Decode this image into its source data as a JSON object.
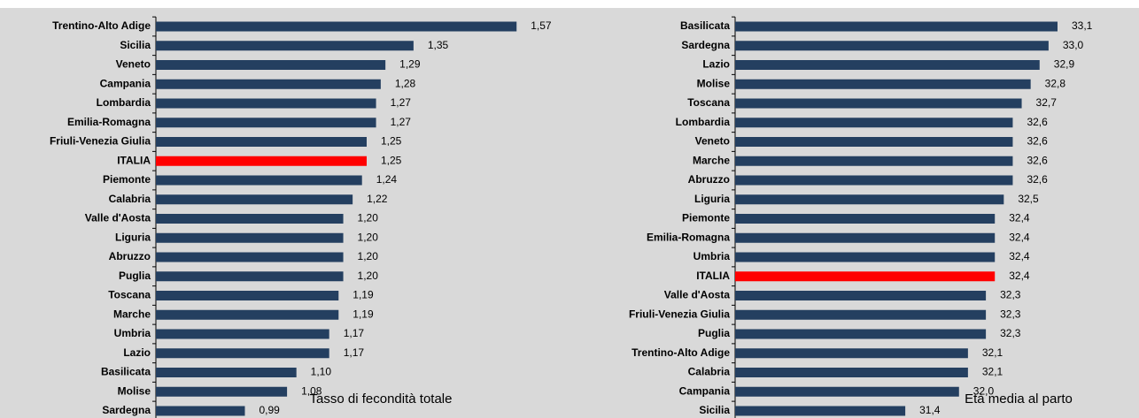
{
  "chart_data": [
    {
      "type": "barh",
      "title": "Tasso di fecondità totale",
      "categories": [
        "Trentino-Alto Adige",
        "Sicilia",
        "Veneto",
        "Campania",
        "Lombardia",
        "Emilia-Romagna",
        "Friuli-Venezia Giulia",
        "ITALIA",
        "Piemonte",
        "Calabria",
        "Valle d'Aosta",
        "Liguria",
        "Abruzzo",
        "Puglia",
        "Toscana",
        "Marche",
        "Umbria",
        "Lazio",
        "Basilicata",
        "Molise",
        "Sardegna"
      ],
      "values": [
        1.57,
        1.35,
        1.29,
        1.28,
        1.27,
        1.27,
        1.25,
        1.25,
        1.24,
        1.22,
        1.2,
        1.2,
        1.2,
        1.2,
        1.19,
        1.19,
        1.17,
        1.17,
        1.1,
        1.08,
        0.99
      ],
      "value_labels": [
        "1,57",
        "1,35",
        "1,29",
        "1,28",
        "1,27",
        "1,27",
        "1,25",
        "1,25",
        "1,24",
        "1,22",
        "1,20",
        "1,20",
        "1,20",
        "1,20",
        "1,19",
        "1,19",
        "1,17",
        "1,17",
        "1,10",
        "1,08",
        "0,99"
      ],
      "colors": [
        "#243f60",
        "#243f60",
        "#243f60",
        "#243f60",
        "#243f60",
        "#243f60",
        "#243f60",
        "#ff0000",
        "#243f60",
        "#243f60",
        "#243f60",
        "#243f60",
        "#243f60",
        "#243f60",
        "#243f60",
        "#243f60",
        "#243f60",
        "#243f60",
        "#243f60",
        "#243f60",
        "#243f60"
      ],
      "xlim": [
        0.8,
        1.7
      ]
    },
    {
      "type": "barh",
      "title": "Età media al parto",
      "categories": [
        "Basilicata",
        "Sardegna",
        "Lazio",
        "Molise",
        "Toscana",
        "Lombardia",
        "Veneto",
        "Marche",
        "Abruzzo",
        "Liguria",
        "Piemonte",
        "Emilia-Romagna",
        "Umbria",
        "ITALIA",
        "Valle d'Aosta",
        "Friuli-Venezia Giulia",
        "Puglia",
        "Trentino-Alto Adige",
        "Calabria",
        "Campania",
        "Sicilia"
      ],
      "values": [
        33.1,
        33.0,
        32.9,
        32.8,
        32.7,
        32.6,
        32.6,
        32.6,
        32.6,
        32.5,
        32.4,
        32.4,
        32.4,
        32.4,
        32.3,
        32.3,
        32.3,
        32.1,
        32.1,
        32.0,
        31.4
      ],
      "value_labels": [
        "33,1",
        "33,0",
        "32,9",
        "32,8",
        "32,7",
        "32,6",
        "32,6",
        "32,6",
        "32,6",
        "32,5",
        "32,4",
        "32,4",
        "32,4",
        "32,4",
        "32,3",
        "32,3",
        "32,3",
        "32,1",
        "32,1",
        "32,0",
        "31,4"
      ],
      "colors": [
        "#243f60",
        "#243f60",
        "#243f60",
        "#243f60",
        "#243f60",
        "#243f60",
        "#243f60",
        "#243f60",
        "#243f60",
        "#243f60",
        "#243f60",
        "#243f60",
        "#243f60",
        "#ff0000",
        "#243f60",
        "#243f60",
        "#243f60",
        "#243f60",
        "#243f60",
        "#243f60",
        "#243f60"
      ],
      "xlim": [
        29.5,
        34.0
      ]
    }
  ]
}
